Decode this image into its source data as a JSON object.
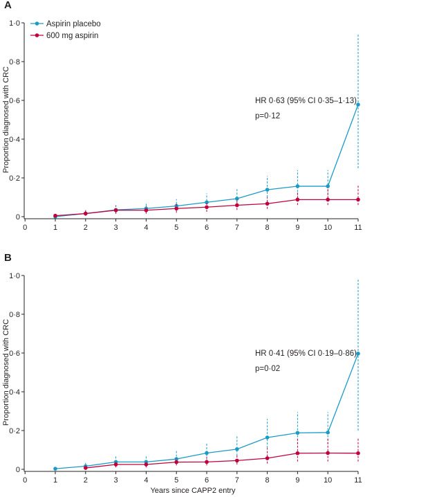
{
  "colors": {
    "placebo": "#1a9bc7",
    "aspirin": "#c0003c",
    "axis": "#231f20"
  },
  "chart_data": [
    {
      "panel": "A",
      "type": "line",
      "xlabel": "",
      "ylabel": "Proportion diagnosed with CRC",
      "xlim": [
        0,
        11
      ],
      "ylim": [
        0,
        1
      ],
      "xticks": [
        "0",
        "1",
        "2",
        "3",
        "4",
        "5",
        "6",
        "7",
        "8",
        "9",
        "10",
        "11"
      ],
      "yticks": [
        "0",
        "0·2",
        "0·4",
        "0·6",
        "0·8",
        "1·0"
      ],
      "grid": false,
      "legend": "top-left",
      "annotation": [
        "HR 0·63 (95% CI 0·35–1·13)",
        "p=0·12"
      ],
      "x": [
        1,
        2,
        3,
        4,
        5,
        6,
        7,
        8,
        9,
        10,
        11
      ],
      "series": [
        {
          "name": "Aspirin placebo",
          "values": [
            0.0,
            0.016,
            0.035,
            0.042,
            0.055,
            0.074,
            0.093,
            0.139,
            0.157,
            0.157,
            0.578
          ],
          "ci_lower": [
            0,
            0.005,
            0.015,
            0.02,
            0.03,
            0.045,
            0.06,
            0.1,
            0.11,
            0.11,
            0.25
          ],
          "ci_upper": [
            0.01,
            0.03,
            0.06,
            0.068,
            0.09,
            0.12,
            0.145,
            0.21,
            0.24,
            0.24,
            0.94
          ]
        },
        {
          "name": "600 mg aspirin",
          "values": [
            0.005,
            0.016,
            0.033,
            0.033,
            0.042,
            0.049,
            0.059,
            0.067,
            0.088,
            0.088,
            0.088
          ],
          "ci_lower": [
            0,
            0.005,
            0.015,
            0.015,
            0.02,
            0.025,
            0.035,
            0.04,
            0.06,
            0.06,
            0.06
          ],
          "ci_upper": [
            0.015,
            0.035,
            0.055,
            0.055,
            0.07,
            0.08,
            0.09,
            0.1,
            0.13,
            0.15,
            0.16
          ]
        }
      ]
    },
    {
      "panel": "B",
      "type": "line",
      "xlabel": "Years since CAPP2 entry",
      "ylabel": "Proportion diagnosed with CRC",
      "xlim": [
        0,
        11
      ],
      "ylim": [
        0,
        1
      ],
      "xticks": [
        "0",
        "1",
        "2",
        "3",
        "4",
        "5",
        "6",
        "7",
        "8",
        "9",
        "10",
        "11"
      ],
      "yticks": [
        "0",
        "0·2",
        "0·4",
        "0·6",
        "0·8",
        "1·0"
      ],
      "grid": false,
      "annotation": [
        "HR 0·41 (95% CI 0·19–0·86)",
        "p=0·02"
      ],
      "x": [
        1,
        2,
        3,
        4,
        5,
        6,
        7,
        8,
        9,
        10,
        11
      ],
      "series": [
        {
          "name": "Aspirin placebo",
          "values": [
            0.003,
            0.016,
            0.038,
            0.038,
            0.053,
            0.084,
            0.104,
            0.164,
            0.188,
            0.19,
            0.597
          ],
          "ci_lower": [
            0,
            0.005,
            0.02,
            0.02,
            0.03,
            0.05,
            0.07,
            0.11,
            0.13,
            0.13,
            0.2
          ],
          "ci_upper": [
            0.01,
            0.04,
            0.07,
            0.07,
            0.098,
            0.135,
            0.17,
            0.26,
            0.295,
            0.295,
            0.98
          ]
        },
        {
          "name": "600 mg aspirin",
          "values": [
            null,
            0.007,
            0.025,
            0.025,
            0.037,
            0.038,
            0.045,
            0.057,
            0.083,
            0.084,
            0.083
          ],
          "ci_lower": [
            null,
            0,
            0.01,
            0.01,
            0.02,
            0.02,
            0.025,
            0.03,
            0.04,
            0.04,
            0.04
          ],
          "ci_upper": [
            null,
            0.02,
            0.045,
            0.045,
            0.06,
            0.065,
            0.075,
            0.11,
            0.16,
            0.165,
            0.165
          ]
        }
      ]
    }
  ]
}
